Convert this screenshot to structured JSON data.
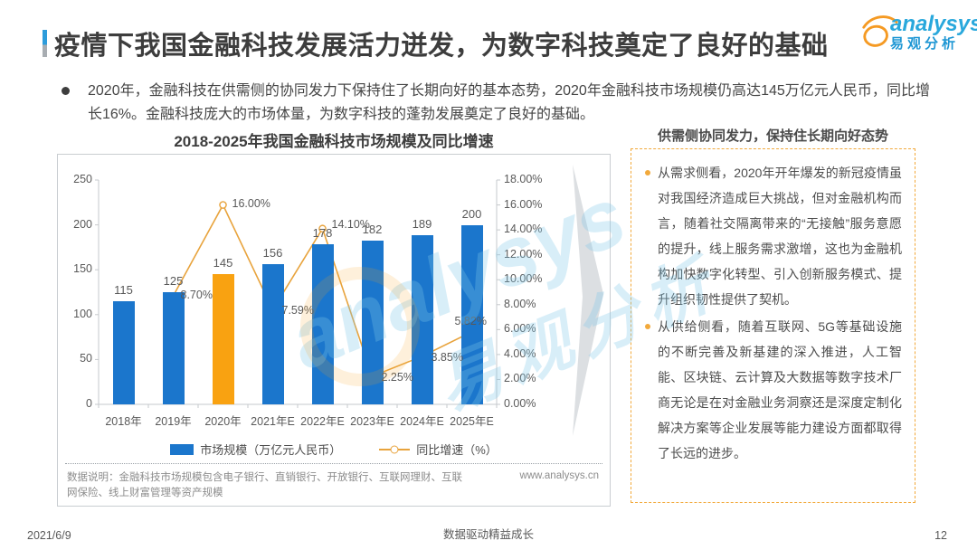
{
  "page": {
    "title": "疫情下我国金融科技发展活力迸发，为数字科技奠定了良好的基础",
    "logo": {
      "brand": "analysys",
      "brand_cn": "易观分析"
    },
    "bullet_text": "2020年，金融科技在供需侧的协同发力下保持住了长期向好的基本态势，2020年金融科技市场规模仍高达145万亿元人民币，同比增长16%。金融科技庞大的市场体量，为数字科技的蓬勃发展奠定了良好的基础。",
    "footer": {
      "date": "2021/6/9",
      "slogan": "数据驱动精益成长",
      "page_number": "12"
    }
  },
  "chart_data": {
    "type": "bar+line",
    "title": "2018-2025年我国金融科技市场规模及同比增速",
    "categories": [
      "2018年",
      "2019年",
      "2020年",
      "2021年E",
      "2022年E",
      "2023年E",
      "2024年E",
      "2025年E"
    ],
    "series": [
      {
        "name": "市场规模（万亿元人民币）",
        "type": "bar",
        "values": [
          115,
          125,
          145,
          156,
          178,
          182,
          189,
          200
        ],
        "highlight_index": 2
      },
      {
        "name": "同比增速（%）",
        "type": "line",
        "values": [
          null,
          8.7,
          16.0,
          7.59,
          14.1,
          2.25,
          3.85,
          5.82
        ],
        "labels": [
          "",
          "8.70%",
          "16.00%",
          "7.59%",
          "14.10%",
          "2.25%",
          "3.85%",
          "5.82%"
        ]
      }
    ],
    "left_axis": {
      "min": 0,
      "max": 250,
      "step": 50,
      "ticks": [
        "0",
        "50",
        "100",
        "150",
        "200",
        "250"
      ]
    },
    "right_axis": {
      "min": 0,
      "max": 18,
      "step": 2,
      "ticks": [
        "0.00%",
        "2.00%",
        "4.00%",
        "6.00%",
        "8.00%",
        "10.00%",
        "12.00%",
        "14.00%",
        "16.00%",
        "18.00%"
      ]
    },
    "colors": {
      "bar": "#1B76CC",
      "bar_highlight": "#F9A211",
      "line": "#E8A33C"
    },
    "legend_position": "bottom",
    "grid": false,
    "footnote": "数据说明：金融科技市场规模包含电子银行、直销银行、开放银行、互联网理财、互联网保险、线上财富管理等资产规模",
    "source_url": "www.analysys.cn"
  },
  "panel": {
    "heading": "供需侧协同发力，保持住长期向好态势",
    "bullets": [
      "从需求侧看，2020年开年爆发的新冠疫情虽对我国经济造成巨大挑战，但对金融机构而言，随着社交隔离带来的“无接触”服务意愿的提升，线上服务需求激增，这也为金融机构加快数字化转型、引入创新服务模式、提升组织韧性提供了契机。",
      "从供给侧看，随着互联网、5G等基础设施的不断完善及新基建的深入推进，人工智能、区块链、云计算及大数据等数字技术厂商无论是在对金融业务洞察还是深度定制化解决方案等企业发展等能力建设方面都取得了长远的进步。"
    ]
  },
  "watermark": {
    "brand": "analysys",
    "brand_cn": "易观分析"
  }
}
